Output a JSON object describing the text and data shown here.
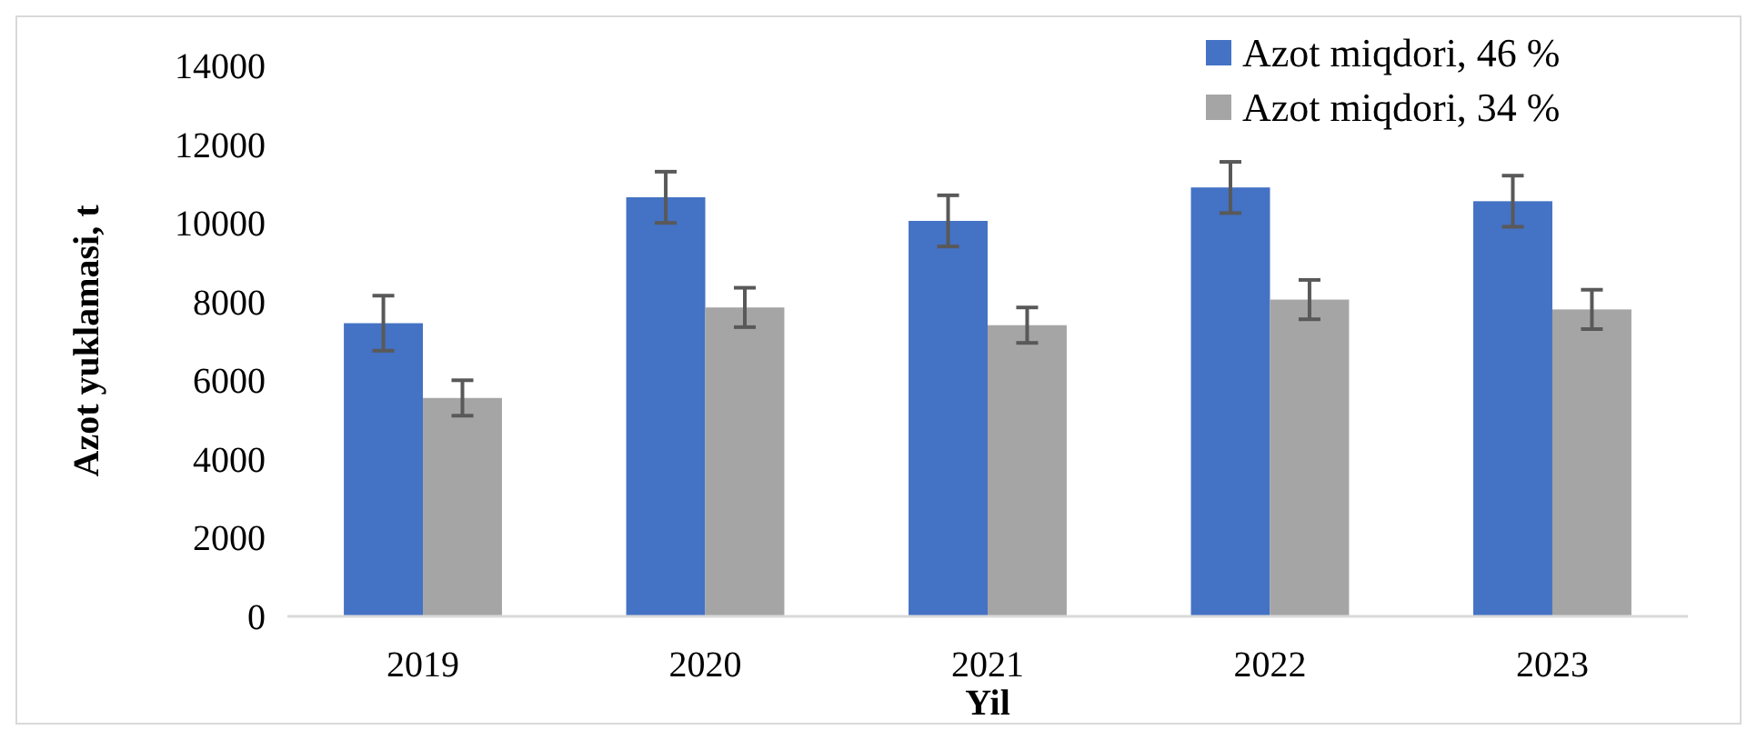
{
  "chart_data": {
    "type": "bar",
    "xlabel": "Yil",
    "ylabel": "Azot yuklamasi, t",
    "categories": [
      "2019",
      "2020",
      "2021",
      "2022",
      "2023"
    ],
    "series": [
      {
        "name": "Azot miqdori, 46 %",
        "color": "#4472c4",
        "values": [
          7450,
          10650,
          10050,
          10900,
          10550
        ],
        "errors": [
          700,
          650,
          650,
          650,
          650
        ]
      },
      {
        "name": "Azot miqdori, 34 %",
        "color": "#a5a5a5",
        "values": [
          5550,
          7850,
          7400,
          8050,
          7800
        ],
        "errors": [
          450,
          500,
          450,
          500,
          500
        ]
      }
    ],
    "ylim": [
      0,
      14000
    ],
    "yticks": [
      0,
      2000,
      4000,
      6000,
      8000,
      10000,
      12000,
      14000
    ],
    "grid": false,
    "legend": "top right"
  }
}
